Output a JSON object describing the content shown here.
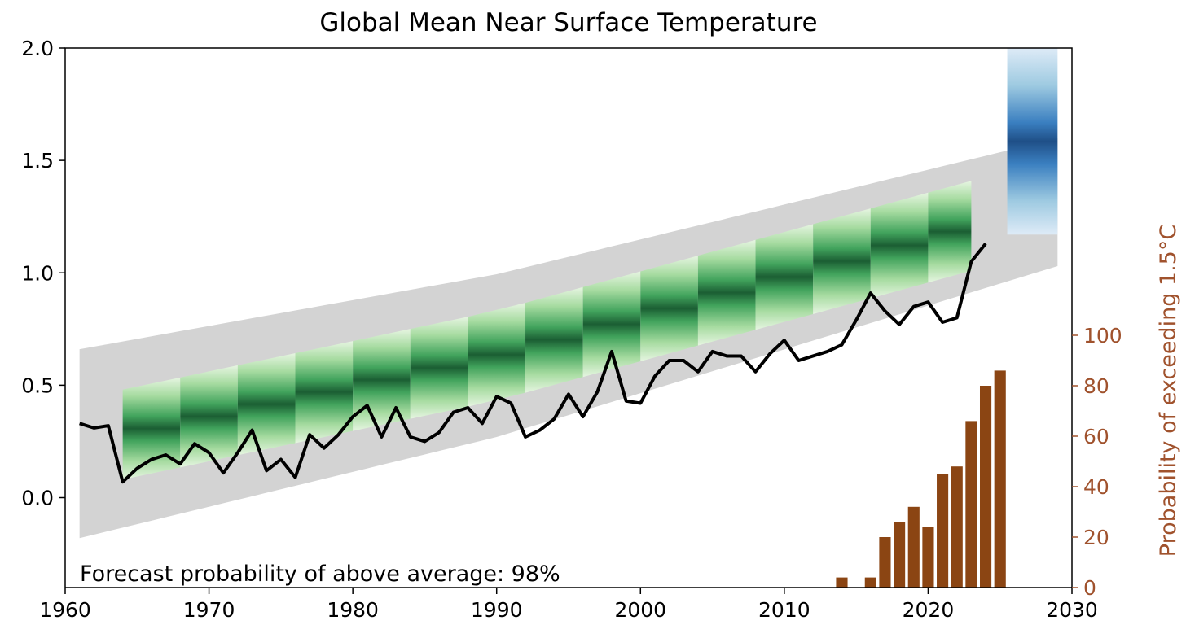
{
  "chart_data": {
    "type": "line",
    "title": "Global Mean Near Surface Temperature",
    "xlim": [
      1960,
      2030
    ],
    "ylim": [
      -0.4,
      2.0
    ],
    "x_ticks": [
      "1960",
      "1970",
      "1980",
      "1990",
      "2000",
      "2010",
      "2020",
      "2030"
    ],
    "y_ticks": [
      "0.0",
      "0.5",
      "1.0",
      "1.5",
      "2.0"
    ],
    "right_axis": {
      "label": "Probability of exceeding 1.5°C",
      "ylim": [
        0,
        100
      ],
      "ticks": [
        "0",
        "20",
        "40",
        "60",
        "80",
        "100"
      ],
      "color": "#a0522d"
    },
    "annotation": "Forecast probability of above average: 98%",
    "colors": {
      "observed": "#000000",
      "ensemble": "#d3d3d3",
      "hindcast": "#1f6e3a",
      "forecast": "#1c5a9a",
      "probability_bars": "#8b4513"
    },
    "observed": {
      "x": [
        1961,
        1962,
        1963,
        1964,
        1965,
        1966,
        1967,
        1968,
        1969,
        1970,
        1971,
        1972,
        1973,
        1974,
        1975,
        1976,
        1977,
        1978,
        1979,
        1980,
        1981,
        1982,
        1983,
        1984,
        1985,
        1986,
        1987,
        1988,
        1989,
        1990,
        1991,
        1992,
        1993,
        1994,
        1995,
        1996,
        1997,
        1998,
        1999,
        2000,
        2001,
        2002,
        2003,
        2004,
        2005,
        2006,
        2007,
        2008,
        2009,
        2010,
        2011,
        2012,
        2013,
        2014,
        2015,
        2016,
        2017,
        2018,
        2019,
        2020,
        2021,
        2022,
        2023,
        2024
      ],
      "y": [
        0.33,
        0.31,
        0.32,
        0.07,
        0.13,
        0.17,
        0.19,
        0.15,
        0.24,
        0.2,
        0.11,
        0.2,
        0.3,
        0.12,
        0.17,
        0.09,
        0.28,
        0.22,
        0.28,
        0.36,
        0.41,
        0.27,
        0.4,
        0.27,
        0.25,
        0.29,
        0.38,
        0.4,
        0.33,
        0.45,
        0.42,
        0.27,
        0.3,
        0.35,
        0.46,
        0.36,
        0.47,
        0.65,
        0.43,
        0.42,
        0.54,
        0.61,
        0.61,
        0.56,
        0.65,
        0.63,
        0.63,
        0.56,
        0.64,
        0.7,
        0.61,
        0.63,
        0.65,
        0.68,
        0.79,
        0.91,
        0.83,
        0.77,
        0.85,
        0.87,
        0.78,
        0.8,
        1.05,
        1.13
      ]
    },
    "probability": {
      "years": [
        2014,
        2016,
        2017,
        2018,
        2019,
        2020,
        2021,
        2022,
        2023,
        2024,
        2025
      ],
      "values": [
        4,
        4,
        20,
        26,
        32,
        24,
        45,
        48,
        66,
        80,
        86
      ]
    }
  }
}
